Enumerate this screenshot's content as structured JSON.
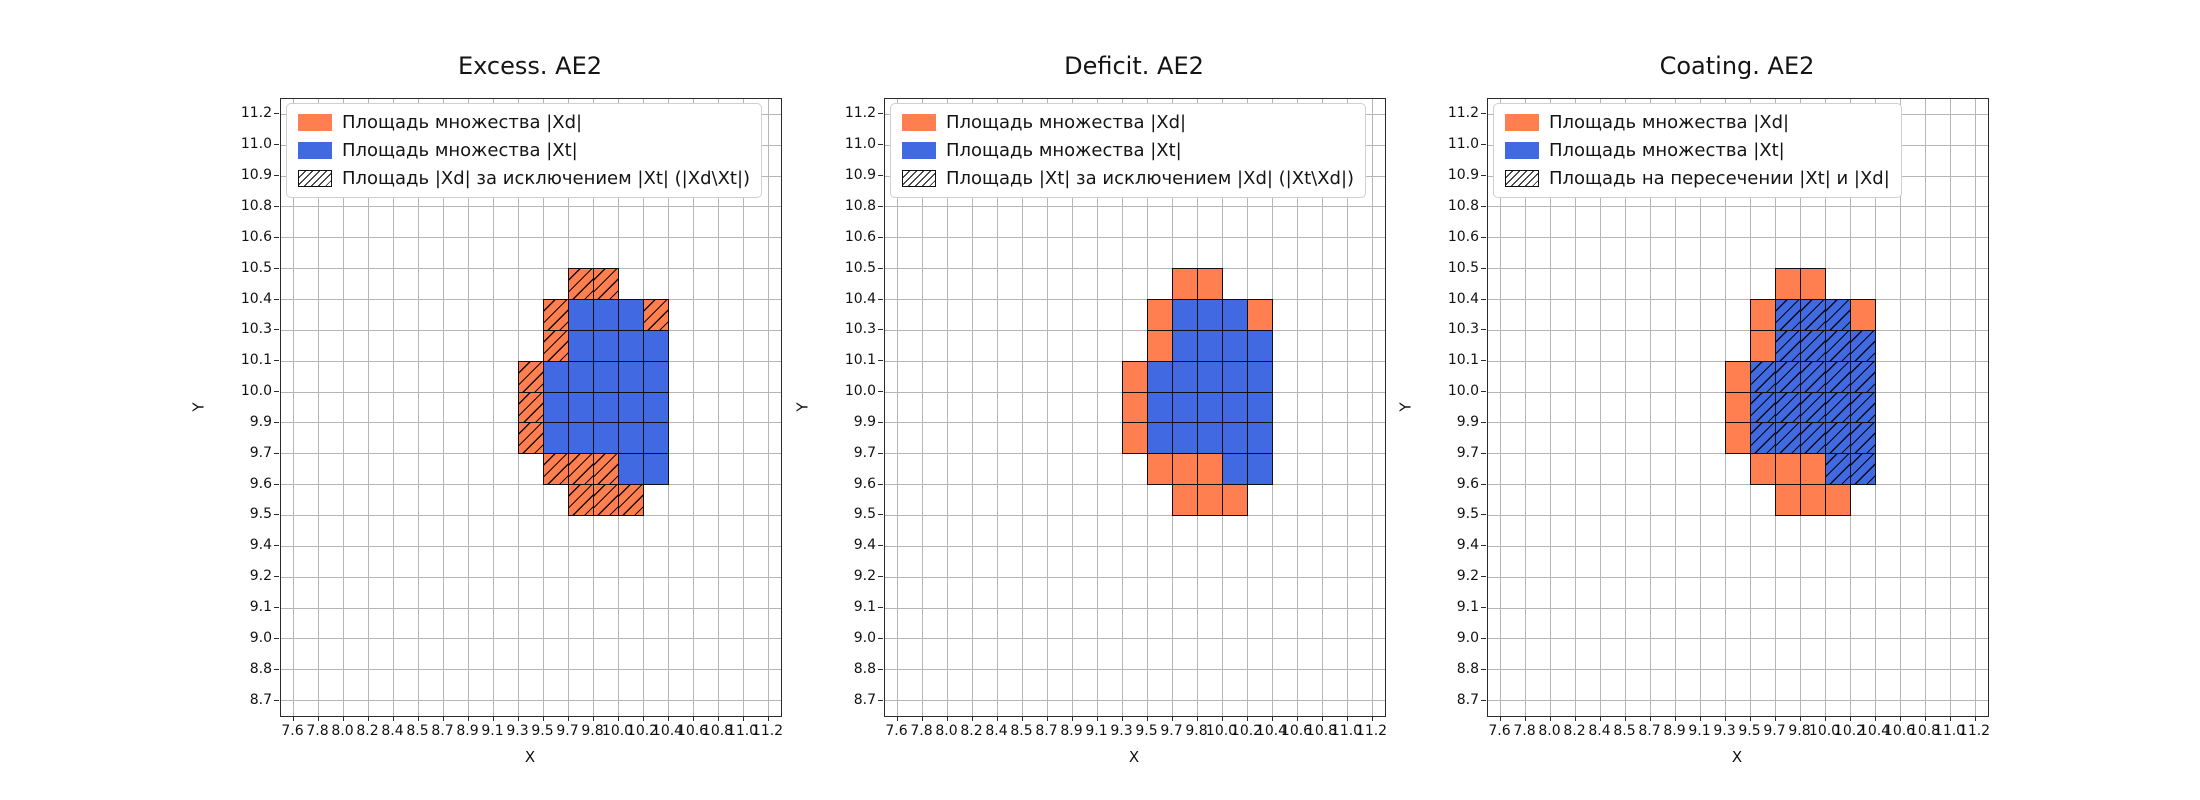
{
  "figure": {
    "background_color": "#ffffff",
    "palette": {
      "xd_fill_orange": "#FF7F50",
      "xt_fill_blue": "#4169E1",
      "grid_line": "#b6b6b6",
      "cell_edge": "#101010",
      "axis_edge": "#2b2b2b"
    }
  },
  "chart_data": [
    {
      "type": "heatmap",
      "title": "Excess. AE2",
      "xlabel": "X",
      "ylabel": "Y",
      "grid": true,
      "legend_position": "upper left",
      "x_ticks": [
        "7.6",
        "7.8",
        "8.0",
        "8.2",
        "8.4",
        "8.5",
        "8.7",
        "8.9",
        "9.1",
        "9.3",
        "9.5",
        "9.7",
        "9.8",
        "10.0",
        "10.2",
        "10.4",
        "10.6",
        "10.8",
        "11.0",
        "11.2"
      ],
      "y_ticks": [
        "11.2",
        "11.0",
        "10.9",
        "10.8",
        "10.6",
        "10.5",
        "10.4",
        "10.3",
        "10.1",
        "10.0",
        "9.9",
        "9.7",
        "9.6",
        "9.5",
        "9.4",
        "9.2",
        "9.1",
        "9.0",
        "8.8",
        "8.7"
      ],
      "legend": [
        {
          "swatch": "orange",
          "label": "Площадь множества |Xd|"
        },
        {
          "swatch": "blue",
          "label": "Площадь множества  |Xt|"
        },
        {
          "swatch": "hatch",
          "label": "Площадь |Xd| за исключением |Xt| (|Xd\\Xt|)"
        }
      ],
      "cells": {
        "row_col_indexing": "row = interval between consecutive y_ticks (top to bottom), col = interval between consecutive x_ticks (left to right)",
        "orange_xd": [
          [
            5,
            11
          ],
          [
            5,
            12
          ],
          [
            6,
            10
          ],
          [
            6,
            14
          ],
          [
            7,
            10
          ],
          [
            8,
            9
          ],
          [
            9,
            9
          ],
          [
            10,
            9
          ],
          [
            11,
            10
          ],
          [
            11,
            11
          ],
          [
            11,
            12
          ],
          [
            12,
            11
          ],
          [
            12,
            12
          ],
          [
            12,
            13
          ]
        ],
        "blue_xt": [
          [
            6,
            11
          ],
          [
            6,
            12
          ],
          [
            6,
            13
          ],
          [
            7,
            11
          ],
          [
            7,
            12
          ],
          [
            7,
            13
          ],
          [
            7,
            14
          ],
          [
            8,
            10
          ],
          [
            8,
            11
          ],
          [
            8,
            12
          ],
          [
            8,
            13
          ],
          [
            8,
            14
          ],
          [
            9,
            10
          ],
          [
            9,
            11
          ],
          [
            9,
            12
          ],
          [
            9,
            13
          ],
          [
            9,
            14
          ],
          [
            10,
            10
          ],
          [
            10,
            11
          ],
          [
            10,
            12
          ],
          [
            10,
            13
          ],
          [
            10,
            14
          ],
          [
            11,
            13
          ],
          [
            11,
            14
          ]
        ],
        "hatched_group": "orange_xd"
      }
    },
    {
      "type": "heatmap",
      "title": "Deficit. AE2",
      "xlabel": "X",
      "ylabel": "Y",
      "grid": true,
      "legend_position": "upper left",
      "x_ticks": [
        "7.6",
        "7.8",
        "8.0",
        "8.2",
        "8.4",
        "8.5",
        "8.7",
        "8.9",
        "9.1",
        "9.3",
        "9.5",
        "9.7",
        "9.8",
        "10.0",
        "10.2",
        "10.4",
        "10.6",
        "10.8",
        "11.0",
        "11.2"
      ],
      "y_ticks": [
        "11.2",
        "11.0",
        "10.9",
        "10.8",
        "10.6",
        "10.5",
        "10.4",
        "10.3",
        "10.1",
        "10.0",
        "9.9",
        "9.7",
        "9.6",
        "9.5",
        "9.4",
        "9.2",
        "9.1",
        "9.0",
        "8.8",
        "8.7"
      ],
      "legend": [
        {
          "swatch": "orange",
          "label": "Площадь множества |Xd|"
        },
        {
          "swatch": "blue",
          "label": "Площадь множества  |Xt|"
        },
        {
          "swatch": "hatch",
          "label": "Площадь |Xt| за исключением |Xd| (|Xt\\Xd|)"
        }
      ],
      "cells": {
        "row_col_indexing": "row = interval between consecutive y_ticks (top to bottom), col = interval between consecutive x_ticks (left to right)",
        "orange_xd": [
          [
            5,
            11
          ],
          [
            5,
            12
          ],
          [
            6,
            10
          ],
          [
            6,
            14
          ],
          [
            7,
            10
          ],
          [
            8,
            9
          ],
          [
            9,
            9
          ],
          [
            10,
            9
          ],
          [
            11,
            10
          ],
          [
            11,
            11
          ],
          [
            11,
            12
          ],
          [
            12,
            11
          ],
          [
            12,
            12
          ],
          [
            12,
            13
          ]
        ],
        "blue_xt": [
          [
            6,
            11
          ],
          [
            6,
            12
          ],
          [
            6,
            13
          ],
          [
            7,
            11
          ],
          [
            7,
            12
          ],
          [
            7,
            13
          ],
          [
            7,
            14
          ],
          [
            8,
            10
          ],
          [
            8,
            11
          ],
          [
            8,
            12
          ],
          [
            8,
            13
          ],
          [
            8,
            14
          ],
          [
            9,
            10
          ],
          [
            9,
            11
          ],
          [
            9,
            12
          ],
          [
            9,
            13
          ],
          [
            9,
            14
          ],
          [
            10,
            10
          ],
          [
            10,
            11
          ],
          [
            10,
            12
          ],
          [
            10,
            13
          ],
          [
            10,
            14
          ],
          [
            11,
            13
          ],
          [
            11,
            14
          ]
        ],
        "hatched_group": "none"
      }
    },
    {
      "type": "heatmap",
      "title": "Coating. AE2",
      "xlabel": "X",
      "ylabel": "Y",
      "grid": true,
      "legend_position": "upper left",
      "x_ticks": [
        "7.6",
        "7.8",
        "8.0",
        "8.2",
        "8.4",
        "8.5",
        "8.7",
        "8.9",
        "9.1",
        "9.3",
        "9.5",
        "9.7",
        "9.8",
        "10.0",
        "10.2",
        "10.4",
        "10.6",
        "10.8",
        "11.0",
        "11.2"
      ],
      "y_ticks": [
        "11.2",
        "11.0",
        "10.9",
        "10.8",
        "10.6",
        "10.5",
        "10.4",
        "10.3",
        "10.1",
        "10.0",
        "9.9",
        "9.7",
        "9.6",
        "9.5",
        "9.4",
        "9.2",
        "9.1",
        "9.0",
        "8.8",
        "8.7"
      ],
      "legend": [
        {
          "swatch": "orange",
          "label": "Площадь множества |Xd|"
        },
        {
          "swatch": "blue",
          "label": "Площадь множества  |Xt|"
        },
        {
          "swatch": "hatch",
          "label": "Площадь на пересечении |Xt| и |Xd|"
        }
      ],
      "cells": {
        "row_col_indexing": "row = interval between consecutive y_ticks (top to bottom), col = interval between consecutive x_ticks (left to right)",
        "orange_xd": [
          [
            5,
            11
          ],
          [
            5,
            12
          ],
          [
            6,
            10
          ],
          [
            6,
            14
          ],
          [
            7,
            10
          ],
          [
            8,
            9
          ],
          [
            9,
            9
          ],
          [
            10,
            9
          ],
          [
            11,
            10
          ],
          [
            11,
            11
          ],
          [
            11,
            12
          ],
          [
            12,
            11
          ],
          [
            12,
            12
          ],
          [
            12,
            13
          ]
        ],
        "blue_xt": [
          [
            6,
            11
          ],
          [
            6,
            12
          ],
          [
            6,
            13
          ],
          [
            7,
            11
          ],
          [
            7,
            12
          ],
          [
            7,
            13
          ],
          [
            7,
            14
          ],
          [
            8,
            10
          ],
          [
            8,
            11
          ],
          [
            8,
            12
          ],
          [
            8,
            13
          ],
          [
            8,
            14
          ],
          [
            9,
            10
          ],
          [
            9,
            11
          ],
          [
            9,
            12
          ],
          [
            9,
            13
          ],
          [
            9,
            14
          ],
          [
            10,
            10
          ],
          [
            10,
            11
          ],
          [
            10,
            12
          ],
          [
            10,
            13
          ],
          [
            10,
            14
          ],
          [
            11,
            13
          ],
          [
            11,
            14
          ]
        ],
        "hatched_group": "blue_xt"
      }
    }
  ]
}
